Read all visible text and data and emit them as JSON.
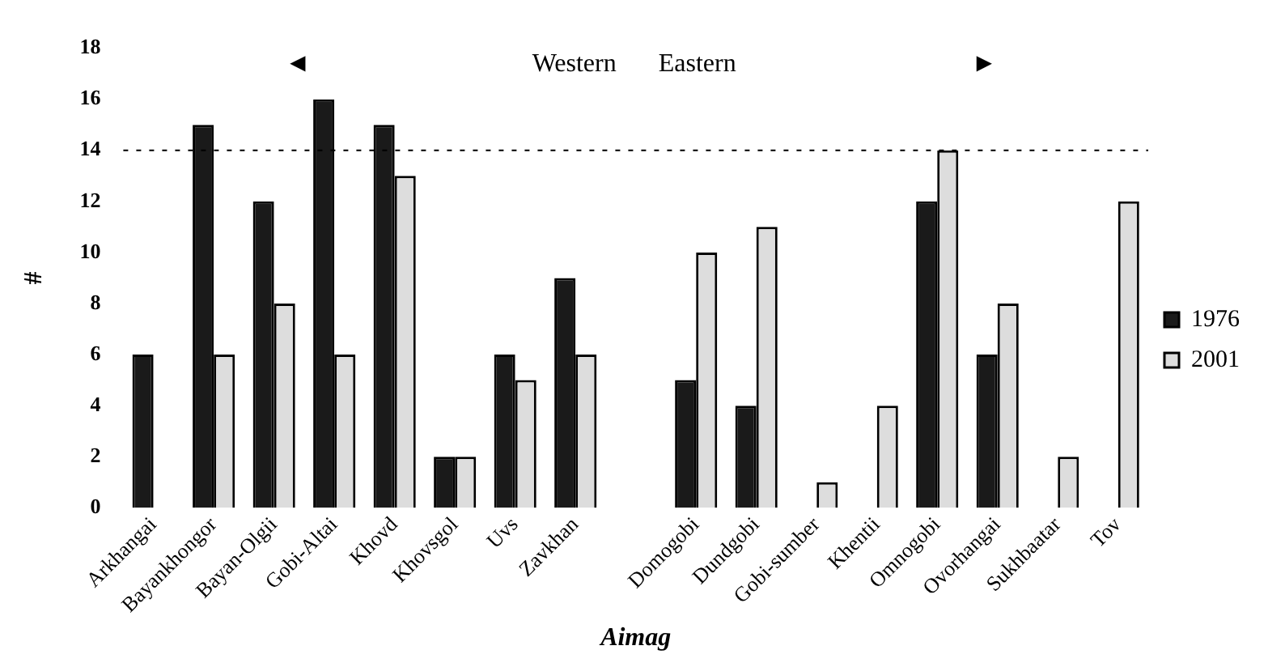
{
  "chart_data": {
    "type": "bar",
    "xlabel": "Aimag",
    "ylabel": "#",
    "categories": [
      "Arkhangai",
      "Bayankhongor",
      "Bayan-Olgii",
      "Gobi-Altai",
      "Khovd",
      "Khovsgol",
      "Uvs",
      "Zavkhan",
      null,
      "Domogobi",
      "Dundgobi",
      "Gobi-sumber",
      "Khentii",
      "Omnogobi",
      "Ovorhangai",
      "Sukhbaatar",
      "Tov"
    ],
    "series": [
      {
        "name": "1976",
        "color": "#1a1a1a",
        "values": [
          6,
          15,
          12,
          16,
          15,
          2,
          6,
          9,
          null,
          5,
          4,
          0,
          0,
          12,
          6,
          0,
          0
        ]
      },
      {
        "name": "2001",
        "color": "#dddddd",
        "values": [
          0,
          6,
          8,
          6,
          13,
          2,
          5,
          6,
          null,
          10,
          11,
          1,
          4,
          14,
          8,
          2,
          12
        ]
      }
    ],
    "ylim": [
      0,
      18
    ],
    "yticks": [
      0,
      2,
      4,
      6,
      8,
      10,
      12,
      14,
      16,
      18
    ],
    "grid": false,
    "legend": "right",
    "ref_lines": [
      {
        "axis": "y",
        "value": 14,
        "color": "#000000",
        "line_style": "dashed"
      }
    ],
    "annotations": [
      "◄",
      "Western",
      "Eastern",
      "►"
    ]
  }
}
